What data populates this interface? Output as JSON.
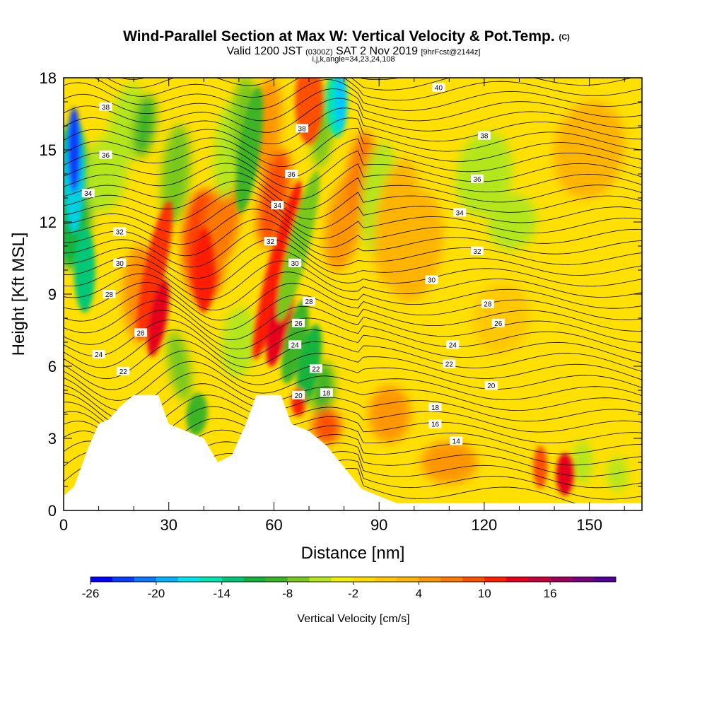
{
  "title": {
    "main": "Wind-Parallel Section at Max W: Vertical Velocity & Pot.Temp.",
    "main_suffix": "(C)",
    "line2_a": "Valid 1200 JST",
    "line2_b": "(0300Z)",
    "line2_c": "SAT 2 Nov 2019",
    "line2_d": "[9hrFcst@2144z]",
    "line3": "i,j,k,angle=34,23,24,108"
  },
  "chart_data": {
    "type": "heatmap",
    "xlabel": "Distance [nm]",
    "ylabel": "Height [Kft MSL]",
    "xlim": [
      0,
      165
    ],
    "ylim": [
      0,
      18
    ],
    "xticks": [
      "0",
      "30",
      "60",
      "90",
      "120",
      "150"
    ],
    "yticks": [
      "0",
      "3",
      "6",
      "9",
      "12",
      "15",
      "18"
    ],
    "colorbar": {
      "title": "Vertical Velocity [cm/s]",
      "labels": [
        "-26",
        "-20",
        "-14",
        "-8",
        "-2",
        "4",
        "10",
        "16"
      ],
      "colors": [
        "#0000ff",
        "#0a3cff",
        "#0a78ff",
        "#00b4ff",
        "#00e6f0",
        "#00e6b4",
        "#00c878",
        "#14b43c",
        "#3cb428",
        "#78c81e",
        "#b4e61e",
        "#eef000",
        "#ffdc00",
        "#ffc800",
        "#ffb400",
        "#ff9600",
        "#ff7800",
        "#ff5000",
        "#ff1e00",
        "#e6001e",
        "#c8003c",
        "#a0005a",
        "#78007d",
        "#500096"
      ]
    },
    "terrain_kft": [
      [
        0,
        0.6
      ],
      [
        3,
        1.0
      ],
      [
        7,
        2.6
      ],
      [
        10,
        3.6
      ],
      [
        13,
        3.8
      ],
      [
        16,
        4.3
      ],
      [
        20,
        4.8
      ],
      [
        27,
        4.8
      ],
      [
        30,
        3.6
      ],
      [
        35,
        3.3
      ],
      [
        40,
        3.0
      ],
      [
        44,
        2.0
      ],
      [
        48,
        2.3
      ],
      [
        52,
        3.6
      ],
      [
        55,
        4.8
      ],
      [
        62,
        4.8
      ],
      [
        65,
        3.6
      ],
      [
        70,
        3.3
      ],
      [
        75,
        2.7
      ],
      [
        80,
        1.8
      ],
      [
        85,
        0.9
      ],
      [
        90,
        0.6
      ],
      [
        95,
        0.3
      ],
      [
        165,
        0.3
      ]
    ],
    "theta_labels": [
      {
        "text": "40",
        "x": 107,
        "y": 17.6
      },
      {
        "text": "38",
        "x": 12,
        "y": 16.8
      },
      {
        "text": "38",
        "x": 68,
        "y": 15.9
      },
      {
        "text": "38",
        "x": 120,
        "y": 15.6
      },
      {
        "text": "36",
        "x": 12,
        "y": 14.8
      },
      {
        "text": "36",
        "x": 65,
        "y": 14.0
      },
      {
        "text": "36",
        "x": 118,
        "y": 13.8
      },
      {
        "text": "34",
        "x": 7,
        "y": 13.2
      },
      {
        "text": "34",
        "x": 61,
        "y": 12.7
      },
      {
        "text": "34",
        "x": 113,
        "y": 12.4
      },
      {
        "text": "32",
        "x": 16,
        "y": 11.6
      },
      {
        "text": "32",
        "x": 59,
        "y": 11.2
      },
      {
        "text": "32",
        "x": 118,
        "y": 10.8
      },
      {
        "text": "30",
        "x": 16,
        "y": 10.3
      },
      {
        "text": "30",
        "x": 66,
        "y": 10.3
      },
      {
        "text": "30",
        "x": 105,
        "y": 9.6
      },
      {
        "text": "28",
        "x": 13,
        "y": 9.0
      },
      {
        "text": "28",
        "x": 70,
        "y": 8.7
      },
      {
        "text": "28",
        "x": 121,
        "y": 8.6
      },
      {
        "text": "26",
        "x": 22,
        "y": 7.4
      },
      {
        "text": "26",
        "x": 67,
        "y": 7.8
      },
      {
        "text": "26",
        "x": 124,
        "y": 7.8
      },
      {
        "text": "24",
        "x": 10,
        "y": 6.5
      },
      {
        "text": "24",
        "x": 66,
        "y": 6.9
      },
      {
        "text": "24",
        "x": 111,
        "y": 6.9
      },
      {
        "text": "22",
        "x": 17,
        "y": 5.8
      },
      {
        "text": "22",
        "x": 72,
        "y": 5.9
      },
      {
        "text": "22",
        "x": 110,
        "y": 6.1
      },
      {
        "text": "20",
        "x": 67,
        "y": 4.8
      },
      {
        "text": "20",
        "x": 122,
        "y": 5.2
      },
      {
        "text": "18",
        "x": 75,
        "y": 4.9
      },
      {
        "text": "18",
        "x": 106,
        "y": 4.3
      },
      {
        "text": "16",
        "x": 106,
        "y": 3.6
      },
      {
        "text": "14",
        "x": 112,
        "y": 2.9
      }
    ]
  }
}
